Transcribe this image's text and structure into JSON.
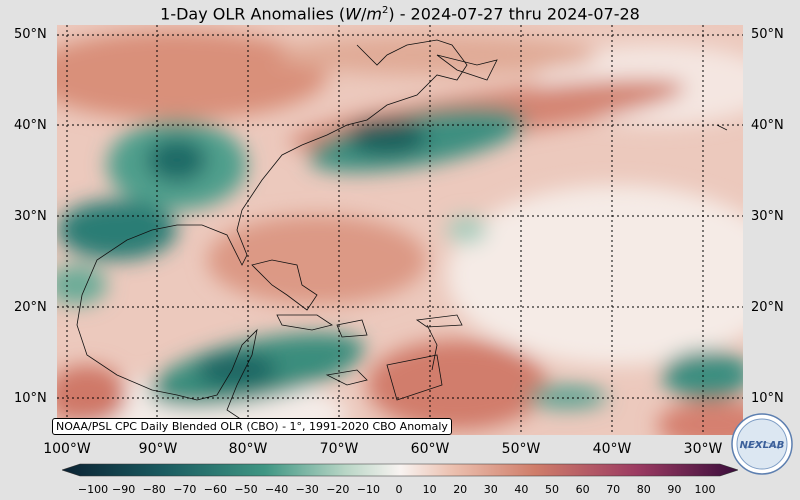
{
  "title": {
    "prefix": "1-Day OLR Anomalies (",
    "unit_w": "W",
    "unit_m": "m",
    "unit_exp": "2",
    "suffix": ") - 2024-07-27 thru 2024-07-28"
  },
  "lat_labels": [
    "50°N",
    "40°N",
    "30°N",
    "20°N",
    "10°N"
  ],
  "lon_labels": [
    "100°W",
    "90°W",
    "80°W",
    "70°W",
    "60°W",
    "50°W",
    "40°W",
    "30°W"
  ],
  "credit": "NOAA/PSL CPC Daily Blended OLR (CBO) - 1°, 1991-2020 CBO Anomaly",
  "colorbar_ticks": [
    "−100",
    "−90",
    "−80",
    "−70",
    "−60",
    "−50",
    "−40",
    "−30",
    "−20",
    "−10",
    "0",
    "10",
    "20",
    "30",
    "40",
    "50",
    "60",
    "70",
    "80",
    "90",
    "100"
  ],
  "colors": {
    "negative_strong": "#0d3b3f",
    "negative_mid": "#2e8b7a",
    "neutral": "#f8f4f2",
    "positive_mid": "#d98c78",
    "positive_strong": "#7a1f5c"
  },
  "logo_text": "NEXLAB"
}
